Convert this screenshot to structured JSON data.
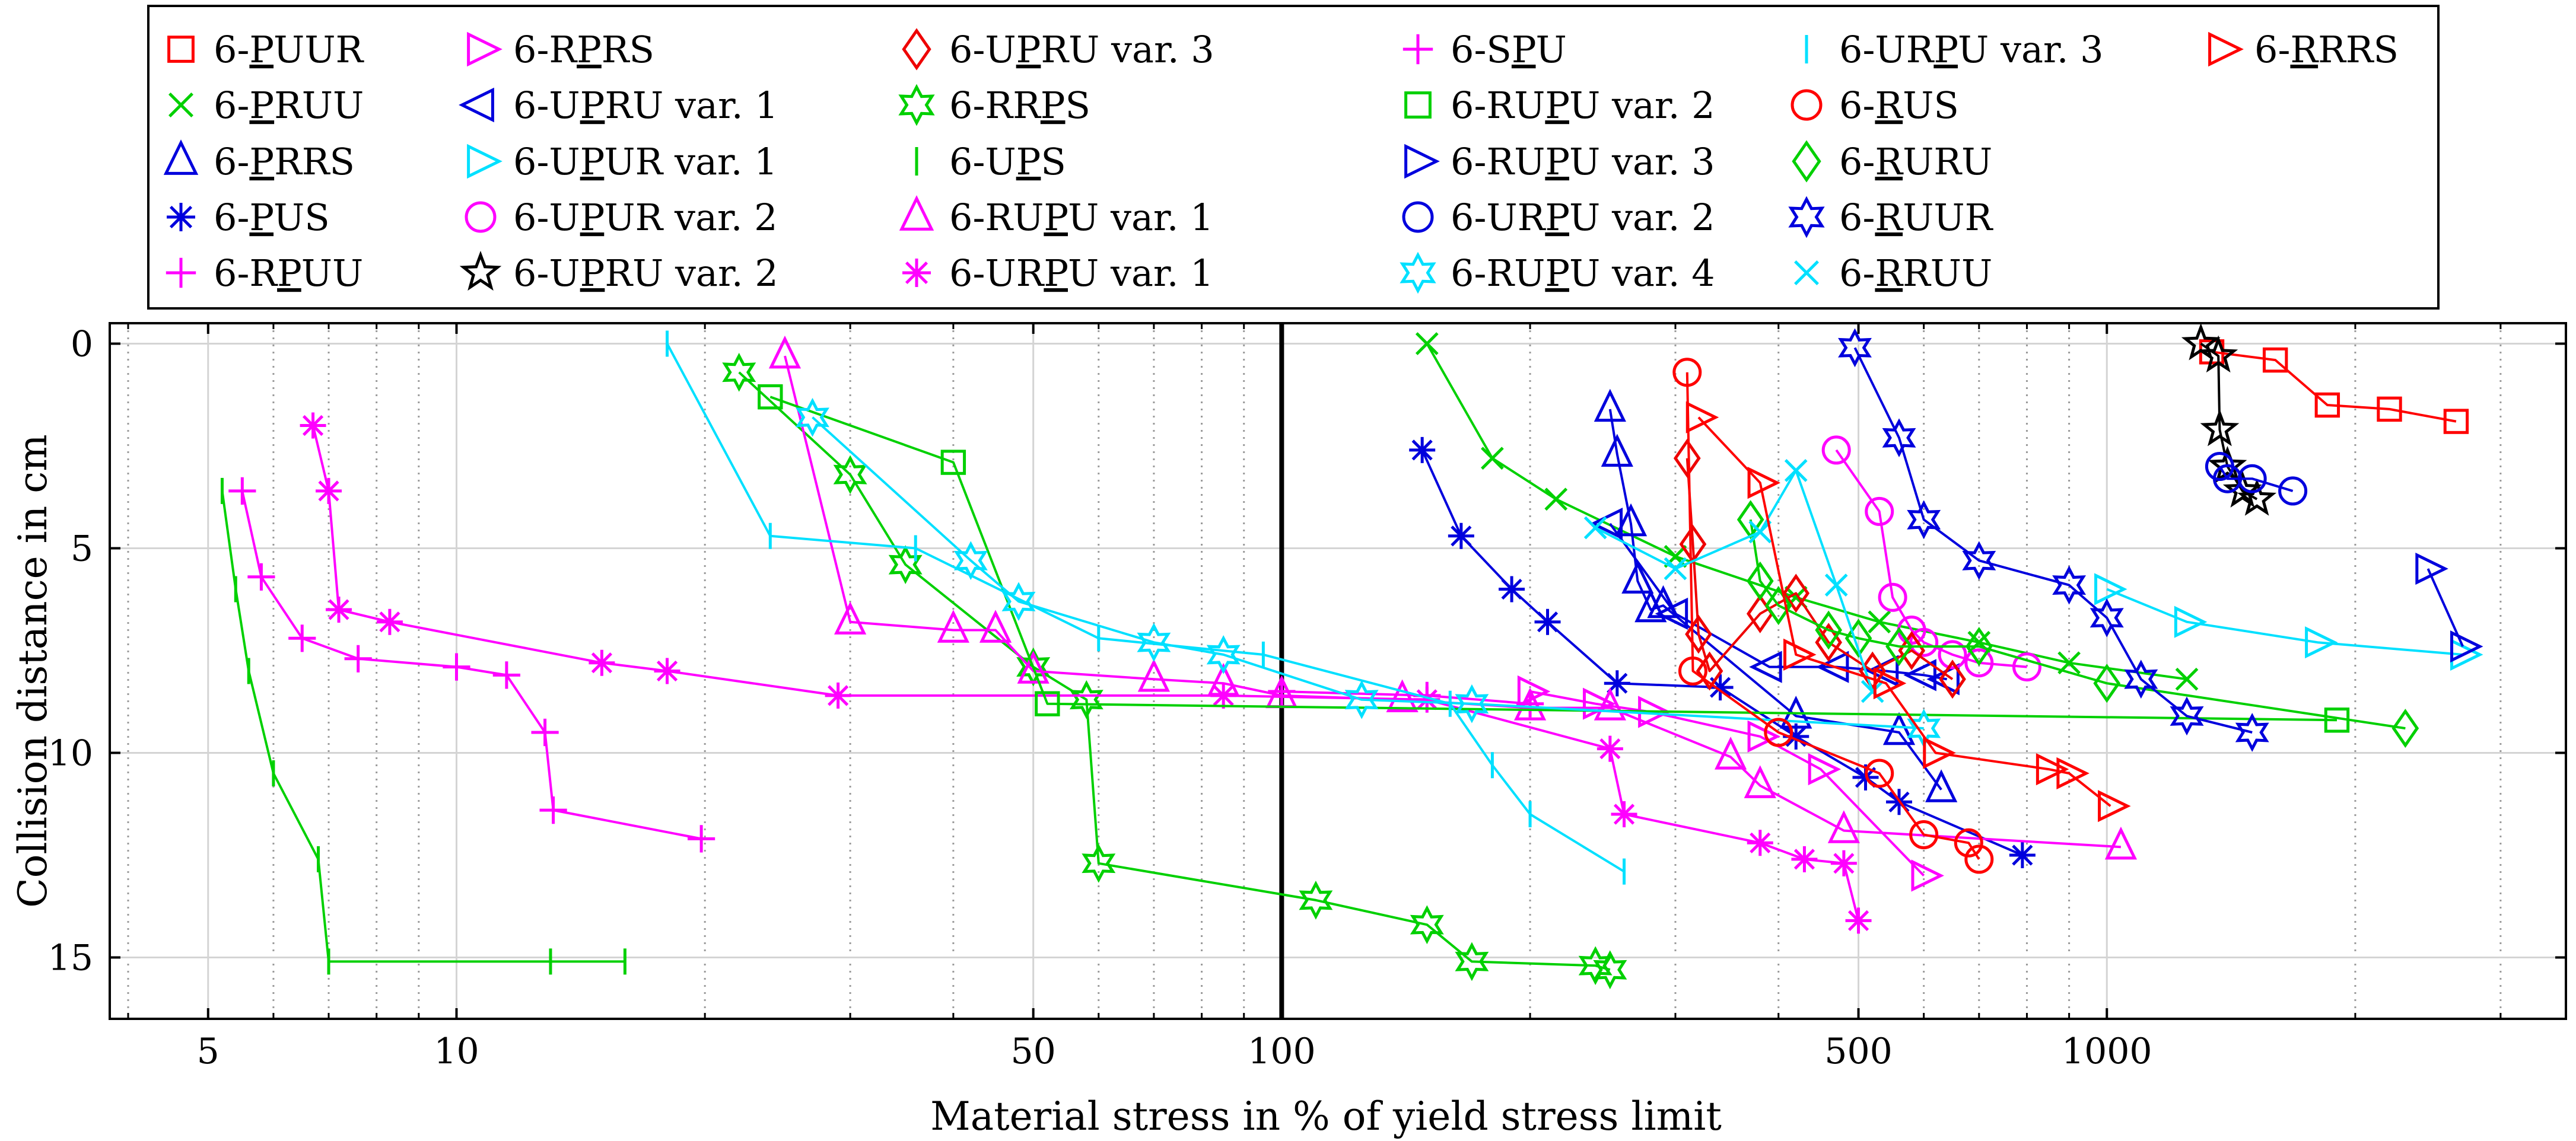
{
  "chart_data": {
    "type": "line",
    "xlabel": "Material stress in % of yield stress limit",
    "ylabel": "Collision distance in cm",
    "xscale": "log",
    "xlim": [
      3.8,
      3600
    ],
    "ylim": [
      16.5,
      -0.5
    ],
    "xticks": [
      5,
      10,
      50,
      100,
      500,
      1000
    ],
    "xtick_labels": [
      "5",
      "10",
      "50",
      "100",
      "500",
      "1000"
    ],
    "yticks": [
      0,
      5,
      10,
      15
    ],
    "ytick_labels": [
      "0",
      "5",
      "10",
      "15"
    ],
    "reference_line_x": 100,
    "legend_location": "top",
    "series": [
      {
        "name": "6-PUUR",
        "pre": "6-",
        "ul": "P",
        "post": "UUR",
        "color": "#ff0000",
        "marker": "square",
        "x": [
          1340,
          1600,
          1850,
          2200,
          2650
        ],
        "y": [
          0.2,
          0.4,
          1.5,
          1.6,
          1.9
        ]
      },
      {
        "name": "6-PRUU",
        "pre": "6-",
        "ul": "P",
        "post": "RUU",
        "color": "#00d000",
        "marker": "x",
        "x": [
          150,
          180,
          215,
          300,
          420,
          530,
          700,
          900,
          1250
        ],
        "y": [
          0,
          2.8,
          3.8,
          5.2,
          6.2,
          6.8,
          7.3,
          7.8,
          8.2
        ]
      },
      {
        "name": "6-PRRS",
        "pre": "6-",
        "ul": "P",
        "post": "RRS",
        "color": "#0000dd",
        "marker": "triangle-up",
        "x": [
          250,
          255,
          265,
          270,
          280,
          290,
          420,
          560,
          630
        ],
        "y": [
          1.6,
          2.7,
          4.4,
          5.8,
          6.5,
          6.4,
          9.1,
          9.5,
          10.9
        ]
      },
      {
        "name": "6-PUS",
        "pre": "6-",
        "ul": "P",
        "post": "US",
        "color": "#0000dd",
        "marker": "asterisk",
        "x": [
          148,
          165,
          190,
          210,
          255,
          340,
          420,
          510,
          560,
          790
        ],
        "y": [
          2.6,
          4.7,
          6,
          6.8,
          8.3,
          8.4,
          9.6,
          10.6,
          11.2,
          12.5
        ]
      },
      {
        "name": "6-RPUU",
        "pre": "6-R",
        "ul": "P",
        "post": "UU",
        "color": "#ff00ff",
        "marker": "plus",
        "x": [
          5.5,
          5.8,
          6.5,
          7.6,
          10,
          11.5,
          12.8,
          13.1,
          19.8
        ],
        "y": [
          3.6,
          5.7,
          7.2,
          7.7,
          7.9,
          8.1,
          9.5,
          11.4,
          12.1
        ]
      },
      {
        "name": "6-RPRS",
        "pre": "6-R",
        "ul": "P",
        "post": "RS",
        "color": "#ff00ff",
        "marker": "triangle-right",
        "x": [
          200,
          240,
          280,
          380,
          450,
          600
        ],
        "y": [
          8.5,
          8.8,
          9,
          9.6,
          10.4,
          13
        ]
      },
      {
        "name": "6-UPRU var. 1",
        "pre": "6-U",
        "ul": "P",
        "post": "RU var. 1",
        "color": "#0000dd",
        "marker": "triangle-left",
        "x": [
          250,
          300,
          390,
          470,
          540,
          600,
          640
        ],
        "y": [
          4.4,
          6.6,
          7.9,
          7.9,
          8.0,
          8.1,
          8.2
        ]
      },
      {
        "name": "6-UPUR var. 1",
        "pre": "6-U",
        "ul": "P",
        "post": "UR var. 1",
        "color": "#00e0ff",
        "marker": "triangle-right",
        "x": [
          1000,
          1250,
          1800,
          2700
        ],
        "y": [
          6,
          6.8,
          7.3,
          7.6
        ]
      },
      {
        "name": "6-UPUR var. 2",
        "pre": "6-U",
        "ul": "P",
        "post": "UR var. 2",
        "color": "#ff00ff",
        "marker": "circle",
        "x": [
          470,
          530,
          550,
          580,
          600,
          650,
          700,
          800
        ],
        "y": [
          2.6,
          4.1,
          6.2,
          7,
          7.3,
          7.6,
          7.8,
          7.9
        ]
      },
      {
        "name": "6-UPRU var. 2",
        "pre": "6-U",
        "ul": "P",
        "post": "RU var. 2",
        "color": "#000000",
        "marker": "star5",
        "x": [
          1300,
          1365,
          1370,
          1400,
          1460,
          1520
        ],
        "y": [
          0,
          0.3,
          2.1,
          3.0,
          3.6,
          3.8
        ]
      },
      {
        "name": "6-UPRU var. 3",
        "pre": "6-U",
        "ul": "P",
        "post": "RU var. 3",
        "color": "#ee0000",
        "marker": "diamond",
        "x": [
          310,
          315,
          320,
          330,
          380,
          420,
          460,
          520,
          580,
          650
        ],
        "y": [
          2.8,
          4.9,
          7.1,
          8.0,
          6.6,
          6.1,
          7.3,
          8.0,
          7.5,
          8.2
        ]
      },
      {
        "name": "6-RRPS",
        "pre": "6-RR",
        "ul": "P",
        "post": "S",
        "color": "#00d000",
        "marker": "star6",
        "x": [
          22,
          30,
          35,
          50,
          58,
          60,
          110,
          150,
          170,
          240,
          250
        ],
        "y": [
          0.7,
          3.2,
          5.4,
          7.9,
          8.7,
          12.7,
          13.6,
          14.2,
          15.1,
          15.2,
          15.3
        ]
      },
      {
        "name": "6-UPS",
        "pre": "6-U",
        "ul": "P",
        "post": "S",
        "color": "#00d000",
        "marker": "vline",
        "x": [
          5.2,
          5.4,
          5.6,
          6,
          6.8,
          7,
          13,
          16
        ],
        "y": [
          3.6,
          6,
          8,
          10.5,
          12.6,
          15.1,
          15.1,
          15.1
        ]
      },
      {
        "name": "6-RUPU var. 1",
        "pre": "6-RU",
        "ul": "P",
        "post": "U var. 1",
        "color": "#ff00ff",
        "marker": "triangle-up",
        "x": [
          25,
          30,
          40,
          45,
          50,
          70,
          85,
          100,
          140,
          200,
          250,
          350,
          380,
          480,
          1040
        ],
        "y": [
          0.3,
          6.8,
          7,
          7,
          8,
          8.2,
          8.3,
          8.6,
          8.7,
          8.9,
          8.9,
          10.1,
          10.8,
          11.9,
          12.3
        ]
      },
      {
        "name": "6-URPU var. 1",
        "pre": "6-UR",
        "ul": "P",
        "post": "U var. 1",
        "color": "#ff00ff",
        "marker": "asterisk",
        "x": [
          6.7,
          7,
          7.2,
          8.3,
          15,
          18,
          29,
          85,
          150,
          250,
          260,
          380,
          430,
          480,
          500
        ],
        "y": [
          2,
          3.6,
          6.5,
          6.8,
          7.8,
          8,
          8.6,
          8.6,
          8.7,
          9.9,
          11.5,
          12.2,
          12.6,
          12.7,
          14.1
        ]
      },
      {
        "name": "6-SPU",
        "pre": "6-S",
        "ul": "P",
        "post": "U",
        "color": "#ff00ff",
        "marker": "plus",
        "x": [
          100,
          150,
          200
        ],
        "y": [
          8.5,
          8.6,
          8.8
        ]
      },
      {
        "name": "6-RUPU var. 2",
        "pre": "6-RU",
        "ul": "P",
        "post": "U var. 2",
        "color": "#00d000",
        "marker": "square",
        "x": [
          24,
          40,
          52,
          1900
        ],
        "y": [
          1.3,
          2.9,
          8.8,
          9.2
        ]
      },
      {
        "name": "6-RUPU var. 3",
        "pre": "6-RU",
        "ul": "P",
        "post": "U var. 3",
        "color": "#0000dd",
        "marker": "triangle-right",
        "x": [
          2450,
          2700
        ],
        "y": [
          5.5,
          7.4
        ]
      },
      {
        "name": "6-URPU var. 2",
        "pre": "6-UR",
        "ul": "P",
        "post": "U var. 2",
        "color": "#0000dd",
        "marker": "circle",
        "x": [
          1370,
          1400,
          1500,
          1680
        ],
        "y": [
          3.0,
          3.3,
          3.3,
          3.6
        ]
      },
      {
        "name": "6-RUPU var. 4",
        "pre": "6-RU",
        "ul": "P",
        "post": "U var. 4",
        "color": "#00e0ff",
        "marker": "star6",
        "x": [
          27,
          42,
          48,
          70,
          85,
          125,
          170,
          600
        ],
        "y": [
          1.8,
          5.3,
          6.3,
          7.3,
          7.6,
          8.7,
          8.8,
          9.4
        ]
      },
      {
        "name": "6-URPU var. 3",
        "pre": "6-UR",
        "ul": "P",
        "post": "U var. 3",
        "color": "#00e0ff",
        "marker": "vline",
        "x": [
          18,
          24,
          36,
          60,
          95,
          160,
          180,
          200,
          260
        ],
        "y": [
          0,
          4.7,
          5,
          7.2,
          7.6,
          8.8,
          10.3,
          11.5,
          12.9
        ]
      },
      {
        "name": "6-RUS",
        "pre": "6-",
        "ul": "R",
        "post": "US",
        "color": "#ff0000",
        "marker": "circle",
        "x": [
          310,
          315,
          400,
          530,
          600,
          680,
          700
        ],
        "y": [
          0.7,
          8,
          9.5,
          10.5,
          12,
          12.2,
          12.6
        ]
      },
      {
        "name": "6-RURU",
        "pre": "6-",
        "ul": "R",
        "post": "URU",
        "color": "#00d000",
        "marker": "diamond",
        "x": [
          370,
          380,
          400,
          460,
          500,
          560,
          700,
          1000,
          2300
        ],
        "y": [
          4.3,
          5.8,
          6.4,
          7.0,
          7.2,
          7.4,
          7.4,
          8.3,
          9.4
        ]
      },
      {
        "name": "6-RUUR",
        "pre": "6-",
        "ul": "R",
        "post": "UUR",
        "color": "#0000dd",
        "marker": "star6",
        "x": [
          495,
          560,
          600,
          700,
          900,
          1000,
          1100,
          1250,
          1500
        ],
        "y": [
          0.1,
          2.3,
          4.3,
          5.3,
          5.9,
          6.7,
          8.2,
          9.1,
          9.5
        ]
      },
      {
        "name": "6-RRUU",
        "pre": "6-",
        "ul": "R",
        "post": "RUU",
        "color": "#00e0ff",
        "marker": "x",
        "x": [
          240,
          300,
          380,
          420,
          470,
          520
        ],
        "y": [
          4.5,
          5.5,
          4.6,
          3.1,
          5.9,
          8.5
        ]
      },
      {
        "name": "6-RRRS",
        "pre": "6-",
        "ul": "R",
        "post": "RRS",
        "color": "#ff0000",
        "marker": "triangle-right",
        "x": [
          320,
          380,
          420,
          540,
          620,
          850,
          900,
          1010
        ],
        "y": [
          1.8,
          3.4,
          7.6,
          8.3,
          10,
          10.4,
          10.5,
          11.3
        ]
      }
    ]
  }
}
